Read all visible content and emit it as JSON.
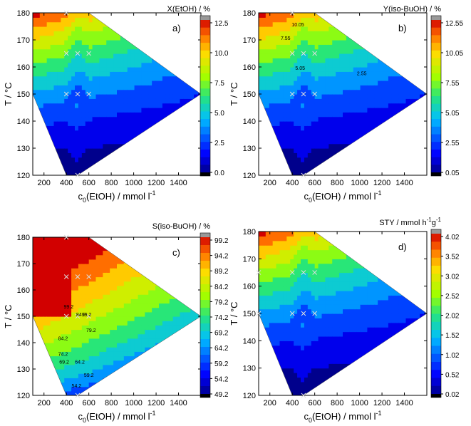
{
  "chart_data": [
    {
      "type": "heatmap",
      "panel_label": "a)",
      "xlabel_main": "c",
      "xlabel_sub": "0",
      "xlabel_rest": "(EtOH) / mmol l",
      "xlabel_sup": "-1",
      "ylabel": "T / °C",
      "xlim": [
        100,
        1600
      ],
      "ylim": [
        120,
        180
      ],
      "xticks": [
        200,
        400,
        600,
        800,
        1000,
        1200,
        1400
      ],
      "yticks": [
        120,
        130,
        140,
        150,
        160,
        170,
        180
      ],
      "colorbar_title": "X(EtOH) / %",
      "colorbar_ticks": [
        "12.5",
        "10.0",
        "7.5",
        "5.0",
        "2.5",
        "0.0"
      ],
      "vmin": 0.0,
      "vmax": 12.5,
      "measurement_points": [
        [
          400,
          150
        ],
        [
          500,
          150
        ],
        [
          600,
          150
        ],
        [
          400,
          165
        ],
        [
          500,
          165
        ],
        [
          600,
          165
        ],
        [
          400,
          180
        ],
        [
          500,
          120
        ]
      ],
      "contour_labels": [],
      "inverse": false
    },
    {
      "type": "heatmap",
      "panel_label": "b)",
      "xlabel_main": "c",
      "xlabel_sub": "0",
      "xlabel_rest": "(EtOH) / mmol l",
      "xlabel_sup": "-1",
      "ylabel": "T / °C",
      "xlim": [
        100,
        1600
      ],
      "ylim": [
        120,
        180
      ],
      "xticks": [
        200,
        400,
        600,
        800,
        1000,
        1200,
        1400
      ],
      "yticks": [
        120,
        130,
        140,
        150,
        160,
        170,
        180
      ],
      "colorbar_title": "Y(iso-BuOH) / %",
      "colorbar_ticks": [
        "12.55",
        "10.05",
        "7.55",
        "5.05",
        "2.55",
        "0.05"
      ],
      "vmin": 0.05,
      "vmax": 12.55,
      "measurement_points": [
        [
          400,
          150
        ],
        [
          500,
          150
        ],
        [
          600,
          150
        ],
        [
          400,
          165
        ],
        [
          500,
          165
        ],
        [
          600,
          165
        ],
        [
          400,
          180
        ],
        [
          500,
          120
        ]
      ],
      "contour_labels": [
        {
          "text": "10.05",
          "x": 450,
          "y": 175
        },
        {
          "text": "7.55",
          "x": 340,
          "y": 170
        },
        {
          "text": "5.05",
          "x": 470,
          "y": 159
        },
        {
          "text": "2.55",
          "x": 1020,
          "y": 157
        }
      ],
      "inverse": false
    },
    {
      "type": "heatmap",
      "panel_label": "c)",
      "xlabel_main": "c",
      "xlabel_sub": "0",
      "xlabel_rest": "(EtOH) / mmol l",
      "xlabel_sup": "-1",
      "ylabel": "T / °C",
      "xlim": [
        100,
        1600
      ],
      "ylim": [
        120,
        180
      ],
      "xticks": [
        200,
        400,
        600,
        800,
        1000,
        1200,
        1400
      ],
      "yticks": [
        120,
        130,
        140,
        150,
        160,
        170,
        180
      ],
      "colorbar_title": "S(iso-BuOH) / %",
      "colorbar_ticks": [
        "99.2",
        "94.2",
        "89.2",
        "84.2",
        "79.2",
        "74.2",
        "69.2",
        "64.2",
        "59.2",
        "54.2",
        "49.2"
      ],
      "vmin": 49.2,
      "vmax": 99.2,
      "measurement_points": [
        [
          400,
          150
        ],
        [
          500,
          150
        ],
        [
          600,
          150
        ],
        [
          400,
          165
        ],
        [
          500,
          165
        ],
        [
          600,
          165
        ],
        [
          400,
          180
        ],
        [
          500,
          120
        ]
      ],
      "contour_labels": [
        {
          "text": "99.2",
          "x": 420,
          "y": 153
        },
        {
          "text": "84.2",
          "x": 530,
          "y": 150
        },
        {
          "text": "99.2",
          "x": 580,
          "y": 150
        },
        {
          "text": "79.2",
          "x": 620,
          "y": 144
        },
        {
          "text": "84.2",
          "x": 370,
          "y": 141
        },
        {
          "text": "74.2",
          "x": 370,
          "y": 135
        },
        {
          "text": "69.2",
          "x": 380,
          "y": 132
        },
        {
          "text": "64.2",
          "x": 520,
          "y": 132
        },
        {
          "text": "59.2",
          "x": 600,
          "y": 127
        },
        {
          "text": "54.2",
          "x": 490,
          "y": 123
        }
      ],
      "inverse": true
    },
    {
      "type": "heatmap",
      "panel_label": "d)",
      "xlabel_main": "c",
      "xlabel_sub": "0",
      "xlabel_rest": "(EtOH) / mmol l",
      "xlabel_sup": "-1",
      "ylabel": "T / °C",
      "xlim": [
        100,
        1600
      ],
      "ylim": [
        120,
        180
      ],
      "xticks": [
        200,
        400,
        600,
        800,
        1000,
        1200,
        1400
      ],
      "yticks": [
        120,
        130,
        140,
        150,
        160,
        170,
        180
      ],
      "colorbar_title_main": "STY / mmol h",
      "colorbar_title_sup1": "-1",
      "colorbar_title_mid": "g",
      "colorbar_title_sup2": "-1",
      "colorbar_ticks": [
        "4.02",
        "3.52",
        "3.02",
        "2.52",
        "2.02",
        "1.52",
        "1.02",
        "0.52",
        "0.02"
      ],
      "vmin": 0.02,
      "vmax": 4.02,
      "measurement_points": [
        [
          400,
          150
        ],
        [
          500,
          150
        ],
        [
          600,
          150
        ],
        [
          400,
          165
        ],
        [
          500,
          165
        ],
        [
          600,
          165
        ],
        [
          100,
          165
        ],
        [
          100,
          150
        ],
        [
          500,
          120
        ]
      ],
      "contour_labels": [],
      "inverse": false
    }
  ]
}
